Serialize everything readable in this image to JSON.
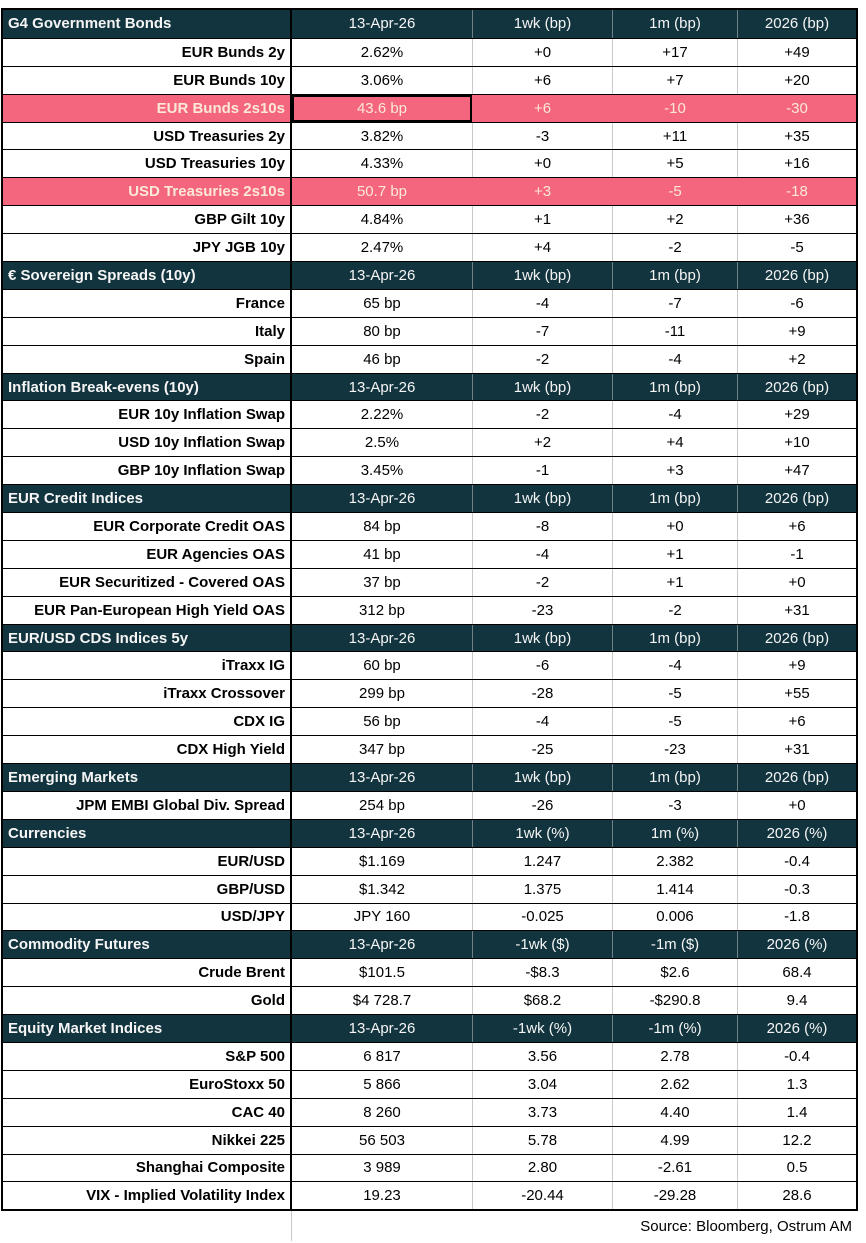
{
  "colors": {
    "header_bg": "#12343E",
    "header_text": "#F5F5F5",
    "highlight_bg": "#F4657E",
    "highlight_text": "#FCE9D5",
    "grid_line": "#C9C9C9",
    "row_border": "#000000"
  },
  "source": "Source: Bloomberg, Ostrum AM",
  "sections": [
    {
      "title": "G4 Government Bonds",
      "headers": [
        "13-Apr-26",
        "1wk (bp)",
        "1m (bp)",
        "2026 (bp)"
      ],
      "rows": [
        {
          "label": "EUR Bunds 2y",
          "values": [
            "2.62%",
            "+0",
            "+17",
            "+49"
          ]
        },
        {
          "label": "EUR Bunds 10y",
          "values": [
            "3.06%",
            "+6",
            "+7",
            "+20"
          ]
        },
        {
          "label": "EUR Bunds 2s10s",
          "values": [
            "43.6 bp",
            "+6",
            "-10",
            "-30"
          ],
          "highlight": true,
          "selected": true
        },
        {
          "label": "USD Treasuries 2y",
          "values": [
            "3.82%",
            "-3",
            "+11",
            "+35"
          ]
        },
        {
          "label": "USD Treasuries 10y",
          "values": [
            "4.33%",
            "+0",
            "+5",
            "+16"
          ]
        },
        {
          "label": "USD Treasuries 2s10s",
          "values": [
            "50.7 bp",
            "+3",
            "-5",
            "-18"
          ],
          "highlight": true
        },
        {
          "label": "GBP Gilt 10y",
          "values": [
            "4.84%",
            "+1",
            "+2",
            "+36"
          ]
        },
        {
          "label": "JPY JGB  10y",
          "values": [
            "2.47%",
            "+4",
            "-2",
            "-5"
          ]
        }
      ]
    },
    {
      "title": "€ Sovereign Spreads (10y)",
      "headers": [
        "13-Apr-26",
        "1wk (bp)",
        "1m (bp)",
        "2026 (bp)"
      ],
      "rows": [
        {
          "label": "France",
          "values": [
            "65 bp",
            "-4",
            "-7",
            "-6"
          ]
        },
        {
          "label": "Italy",
          "values": [
            "80 bp",
            "-7",
            "-11",
            "+9"
          ]
        },
        {
          "label": "Spain",
          "values": [
            "46 bp",
            "-2",
            "-4",
            "+2"
          ]
        }
      ]
    },
    {
      "title": "Inflation Break-evens (10y)",
      "headers": [
        "13-Apr-26",
        "1wk (bp)",
        "1m (bp)",
        "2026 (bp)"
      ],
      "rows": [
        {
          "label": "EUR 10y Inflation Swap",
          "values": [
            "2.22%",
            "-2",
            "-4",
            "+29"
          ]
        },
        {
          "label": "USD 10y Inflation Swap",
          "values": [
            "2.5%",
            "+2",
            "+4",
            "+10"
          ]
        },
        {
          "label": "GBP 10y Inflation Swap",
          "values": [
            "3.45%",
            "-1",
            "+3",
            "+47"
          ]
        }
      ]
    },
    {
      "title": "EUR Credit Indices",
      "headers": [
        "13-Apr-26",
        "1wk (bp)",
        "1m (bp)",
        "2026 (bp)"
      ],
      "rows": [
        {
          "label": "EUR Corporate Credit OAS",
          "values": [
            "84 bp",
            "-8",
            "+0",
            "+6"
          ]
        },
        {
          "label": "EUR Agencies OAS",
          "values": [
            "41 bp",
            "-4",
            "+1",
            "-1"
          ]
        },
        {
          "label": "EUR Securitized - Covered OAS",
          "values": [
            "37 bp",
            "-2",
            "+1",
            "+0"
          ]
        },
        {
          "label": "EUR Pan-European High Yield OAS",
          "values": [
            "312 bp",
            "-23",
            "-2",
            "+31"
          ]
        }
      ]
    },
    {
      "title": "EUR/USD CDS Indices 5y",
      "headers": [
        "13-Apr-26",
        "1wk (bp)",
        "1m (bp)",
        "2026 (bp)"
      ],
      "rows": [
        {
          "label": "iTraxx IG",
          "values": [
            "60 bp",
            "-6",
            "-4",
            "+9"
          ]
        },
        {
          "label": "iTraxx Crossover",
          "values": [
            "299 bp",
            "-28",
            "-5",
            "+55"
          ]
        },
        {
          "label": "CDX IG",
          "values": [
            "56 bp",
            "-4",
            "-5",
            "+6"
          ]
        },
        {
          "label": "CDX High Yield",
          "values": [
            "347 bp",
            "-25",
            "-23",
            "+31"
          ]
        }
      ]
    },
    {
      "title": "Emerging Markets",
      "headers": [
        "13-Apr-26",
        "1wk (bp)",
        "1m (bp)",
        "2026 (bp)"
      ],
      "rows": [
        {
          "label": "JPM EMBI Global Div. Spread",
          "values": [
            "254 bp",
            "-26",
            "-3",
            "+0"
          ]
        }
      ]
    },
    {
      "title": "Currencies",
      "headers": [
        "13-Apr-26",
        "1wk (%)",
        "1m (%)",
        "2026 (%)"
      ],
      "rows": [
        {
          "label": "EUR/USD",
          "values": [
            "$1.169",
            "1.247",
            "2.382",
            "-0.4"
          ]
        },
        {
          "label": "GBP/USD",
          "values": [
            "$1.342",
            "1.375",
            "1.414",
            "-0.3"
          ]
        },
        {
          "label": "USD/JPY",
          "values": [
            "JPY 160",
            "-0.025",
            "0.006",
            "-1.8"
          ]
        }
      ]
    },
    {
      "title": "Commodity Futures",
      "headers": [
        "13-Apr-26",
        "-1wk ($)",
        "-1m ($)",
        "2026 (%)"
      ],
      "rows": [
        {
          "label": "Crude Brent",
          "values": [
            "$101.5",
            "-$8.3",
            "$2.6",
            "68.4"
          ]
        },
        {
          "label": "Gold",
          "values": [
            "$4 728.7",
            "$68.2",
            "-$290.8",
            "9.4"
          ]
        }
      ]
    },
    {
      "title": "Equity Market Indices",
      "headers": [
        "13-Apr-26",
        "-1wk (%)",
        "-1m (%)",
        "2026 (%)"
      ],
      "rows": [
        {
          "label": "S&P 500",
          "values": [
            "6 817",
            "3.56",
            "2.78",
            "-0.4"
          ]
        },
        {
          "label": "EuroStoxx 50",
          "values": [
            "5 866",
            "3.04",
            "2.62",
            "1.3"
          ]
        },
        {
          "label": "CAC 40",
          "values": [
            "8 260",
            "3.73",
            "4.40",
            "1.4"
          ]
        },
        {
          "label": "Nikkei 225",
          "values": [
            "56 503",
            "5.78",
            "4.99",
            "12.2"
          ]
        },
        {
          "label": "Shanghai Composite",
          "values": [
            "3 989",
            "2.80",
            "-2.61",
            "0.5"
          ]
        },
        {
          "label": "VIX - Implied Volatility Index",
          "values": [
            "19.23",
            "-20.44",
            "-29.28",
            "28.6"
          ]
        }
      ]
    }
  ]
}
